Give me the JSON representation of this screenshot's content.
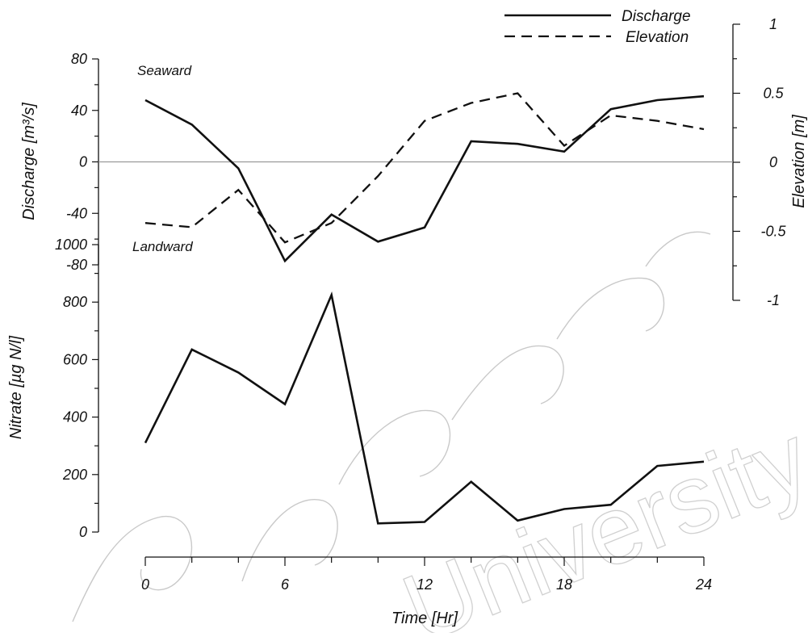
{
  "chart_data": [
    {
      "type": "line",
      "x": [
        0,
        2,
        4,
        6,
        8,
        10,
        12,
        14,
        16,
        18,
        20,
        22,
        24
      ],
      "series": [
        {
          "name": "Discharge",
          "axis": "left",
          "style": "solid",
          "values": [
            48,
            29,
            -5,
            -77,
            -41,
            -62,
            -51,
            16,
            14,
            8,
            41,
            48,
            51
          ]
        },
        {
          "name": "Elevation",
          "axis": "right",
          "style": "dashed",
          "values": [
            -0.44,
            -0.47,
            -0.2,
            -0.58,
            -0.44,
            -0.1,
            0.3,
            0.43,
            0.5,
            0.12,
            0.34,
            0.3,
            0.24
          ]
        }
      ],
      "ylabel_left": "Discharge [m³/s]",
      "ylabel_right": "Elevation [m]",
      "ylim_left": [
        -80,
        80
      ],
      "ylim_right": [
        -1,
        1
      ],
      "yticks_left": [
        -80,
        -40,
        0,
        40,
        80
      ],
      "yticks_right": [
        -1,
        -0.5,
        0,
        0.5,
        1
      ],
      "yticks_right_labels": [
        "-1",
        "-0.5",
        "0",
        "0.5",
        "1"
      ],
      "xlim": [
        0,
        24
      ],
      "zero_line": true,
      "legend": {
        "placement": "top-right",
        "entries": [
          "Discharge",
          "Elevation"
        ]
      },
      "annotations": [
        "Seaward",
        "Landward"
      ]
    },
    {
      "type": "line",
      "x": [
        0,
        2,
        4,
        6,
        8,
        10,
        12,
        14,
        16,
        18,
        20,
        22,
        24
      ],
      "series": [
        {
          "name": "",
          "style": "solid",
          "values": [
            310,
            635,
            555,
            445,
            825,
            30,
            35,
            175,
            40,
            80,
            95,
            230,
            245
          ]
        }
      ],
      "ylabel": "Nitrate [µg N/l]",
      "ylim": [
        0,
        1000
      ],
      "yticks": [
        0,
        200,
        400,
        600,
        800,
        1000
      ],
      "xlabel": "Time [Hr]",
      "xlim": [
        0,
        24
      ],
      "xticks": [
        0,
        6,
        12,
        18,
        24
      ]
    }
  ],
  "watermark": {
    "text": "University"
  }
}
